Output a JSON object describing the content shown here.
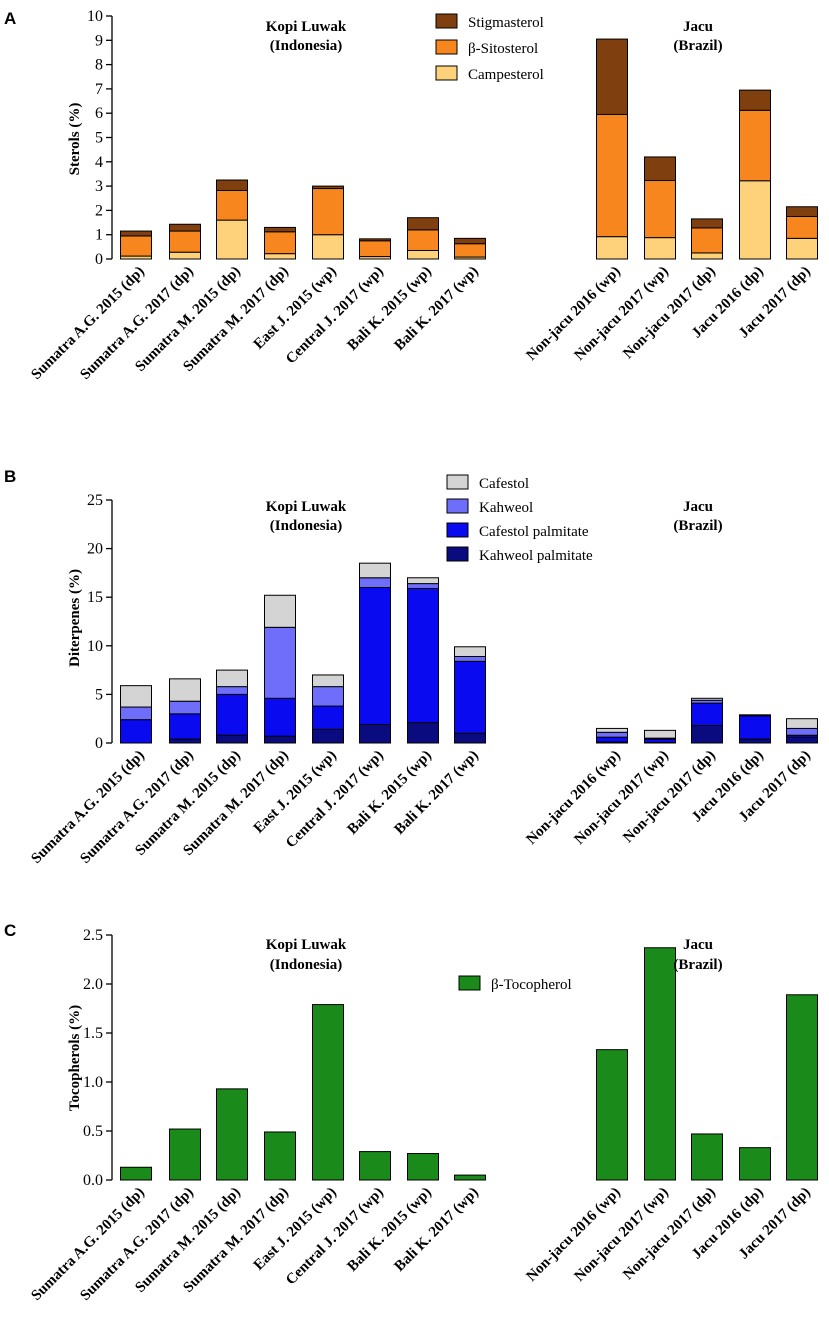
{
  "chart_data": [
    {
      "panel": "A",
      "type": "bar",
      "stacked": true,
      "ylabel": "Sterols (%)",
      "ylim": [
        0,
        10
      ],
      "yticks": [
        0,
        1,
        2,
        3,
        4,
        5,
        6,
        7,
        8,
        9,
        10
      ],
      "group_labels": [
        {
          "line1": "Kopi Luwak",
          "line2": "(Indonesia)"
        },
        {
          "line1": "Jacu",
          "line2": "(Brazil)"
        }
      ],
      "categories": [
        "Sumatra A.G. 2015 (dp)",
        "Sumatra A.G. 2017 (dp)",
        "Sumatra M. 2015 (dp)",
        "Sumatra M. 2017 (dp)",
        "East J. 2015 (wp)",
        "Central J. 2017 (wp)",
        "Bali K. 2015 (wp)",
        "Bali K. 2017 (wp)",
        "Non-jacu 2016 (wp)",
        "Non-jacu 2017 (wp)",
        "Non-jacu 2017 (dp)",
        "Jacu 2016 (dp)",
        "Jacu 2017 (dp)"
      ],
      "series": [
        {
          "name": "Campesterol",
          "color": "#FDD27A",
          "values": [
            0.12,
            0.28,
            1.6,
            0.22,
            1.0,
            0.1,
            0.35,
            0.08,
            0.92,
            0.88,
            0.25,
            3.22,
            0.85
          ]
        },
        {
          "name": "β-Sitosterol",
          "color": "#F7861E",
          "values": [
            0.83,
            0.87,
            1.22,
            0.9,
            1.9,
            0.65,
            0.85,
            0.55,
            5.03,
            2.35,
            1.03,
            2.9,
            0.9
          ]
        },
        {
          "name": "Stigmasterol",
          "color": "#7F3F0E",
          "values": [
            0.2,
            0.28,
            0.43,
            0.18,
            0.1,
            0.08,
            0.5,
            0.22,
            3.1,
            0.97,
            0.37,
            0.83,
            0.4
          ]
        }
      ],
      "legend_order": [
        "Stigmasterol",
        "β-Sitosterol",
        "Campesterol"
      ]
    },
    {
      "panel": "B",
      "type": "bar",
      "stacked": true,
      "ylabel": "Diterpenes (%)",
      "ylim": [
        0,
        25
      ],
      "yticks": [
        0,
        5,
        10,
        15,
        20,
        25
      ],
      "group_labels": [
        {
          "line1": "Kopi Luwak",
          "line2": "(Indonesia)"
        },
        {
          "line1": "Jacu",
          "line2": "(Brazil)"
        }
      ],
      "categories": [
        "Sumatra A.G. 2015 (dp)",
        "Sumatra A.G. 2017 (dp)",
        "Sumatra M. 2015 (dp)",
        "Sumatra M. 2017 (dp)",
        "East J. 2015 (wp)",
        "Central J. 2017 (wp)",
        "Bali K. 2015 (wp)",
        "Bali K. 2017 (wp)",
        "Non-jacu 2016 (wp)",
        "Non-jacu 2017 (wp)",
        "Non-jacu 2017 (dp)",
        "Jacu 2016 (dp)",
        "Jacu 2017 (dp)"
      ],
      "series": [
        {
          "name": "Kahweol palmitate",
          "color": "#0B0B80",
          "values": [
            0.0,
            0.4,
            0.8,
            0.7,
            1.4,
            1.9,
            2.1,
            1.0,
            0.1,
            0.05,
            1.8,
            0.4,
            0.6
          ]
        },
        {
          "name": "Cafestol palmitate",
          "color": "#0A0AF0",
          "values": [
            2.4,
            2.6,
            4.2,
            3.9,
            2.4,
            14.1,
            13.8,
            7.4,
            0.5,
            0.35,
            2.3,
            2.4,
            0.2
          ]
        },
        {
          "name": "Kahweol",
          "color": "#6E6EFA",
          "values": [
            1.3,
            1.3,
            0.8,
            7.3,
            2.0,
            1.0,
            0.5,
            0.5,
            0.5,
            0.1,
            0.3,
            0.1,
            0.7
          ]
        },
        {
          "name": "Cafestol",
          "color": "#D4D4D4",
          "values": [
            2.2,
            2.3,
            1.7,
            3.3,
            1.2,
            1.5,
            0.6,
            1.0,
            0.4,
            0.8,
            0.2,
            0.0,
            1.0
          ]
        }
      ],
      "legend_order": [
        "Cafestol",
        "Kahweol",
        "Cafestol palmitate",
        "Kahweol palmitate"
      ]
    },
    {
      "panel": "C",
      "type": "bar",
      "stacked": false,
      "ylabel": "Tocopherols (%)",
      "ylim": [
        0,
        2.5
      ],
      "yticks": [
        "0.0",
        "0.5",
        "1.0",
        "1.5",
        "2.0",
        "2.5"
      ],
      "group_labels": [
        {
          "line1": "Kopi Luwak",
          "line2": "(Indonesia)"
        },
        {
          "line1": "Jacu",
          "line2": "(Brazil)"
        }
      ],
      "categories": [
        "Sumatra A.G. 2015 (dp)",
        "Sumatra A.G. 2017 (dp)",
        "Sumatra M. 2015 (dp)",
        "Sumatra M. 2017 (dp)",
        "East J. 2015 (wp)",
        "Central J. 2017 (wp)",
        "Bali K. 2015 (wp)",
        "Bali K. 2017 (wp)",
        "Non-jacu 2016 (wp)",
        "Non-jacu 2017 (wp)",
        "Non-jacu 2017 (dp)",
        "Jacu 2016 (dp)",
        "Jacu 2017 (dp)"
      ],
      "series": [
        {
          "name": "β-Tocopherol",
          "color": "#1A8A1A",
          "values": [
            0.13,
            0.52,
            0.93,
            0.49,
            1.79,
            0.29,
            0.27,
            0.05,
            1.33,
            2.37,
            0.47,
            0.33,
            1.89
          ]
        }
      ],
      "legend_order": [
        "β-Tocopherol"
      ]
    }
  ]
}
